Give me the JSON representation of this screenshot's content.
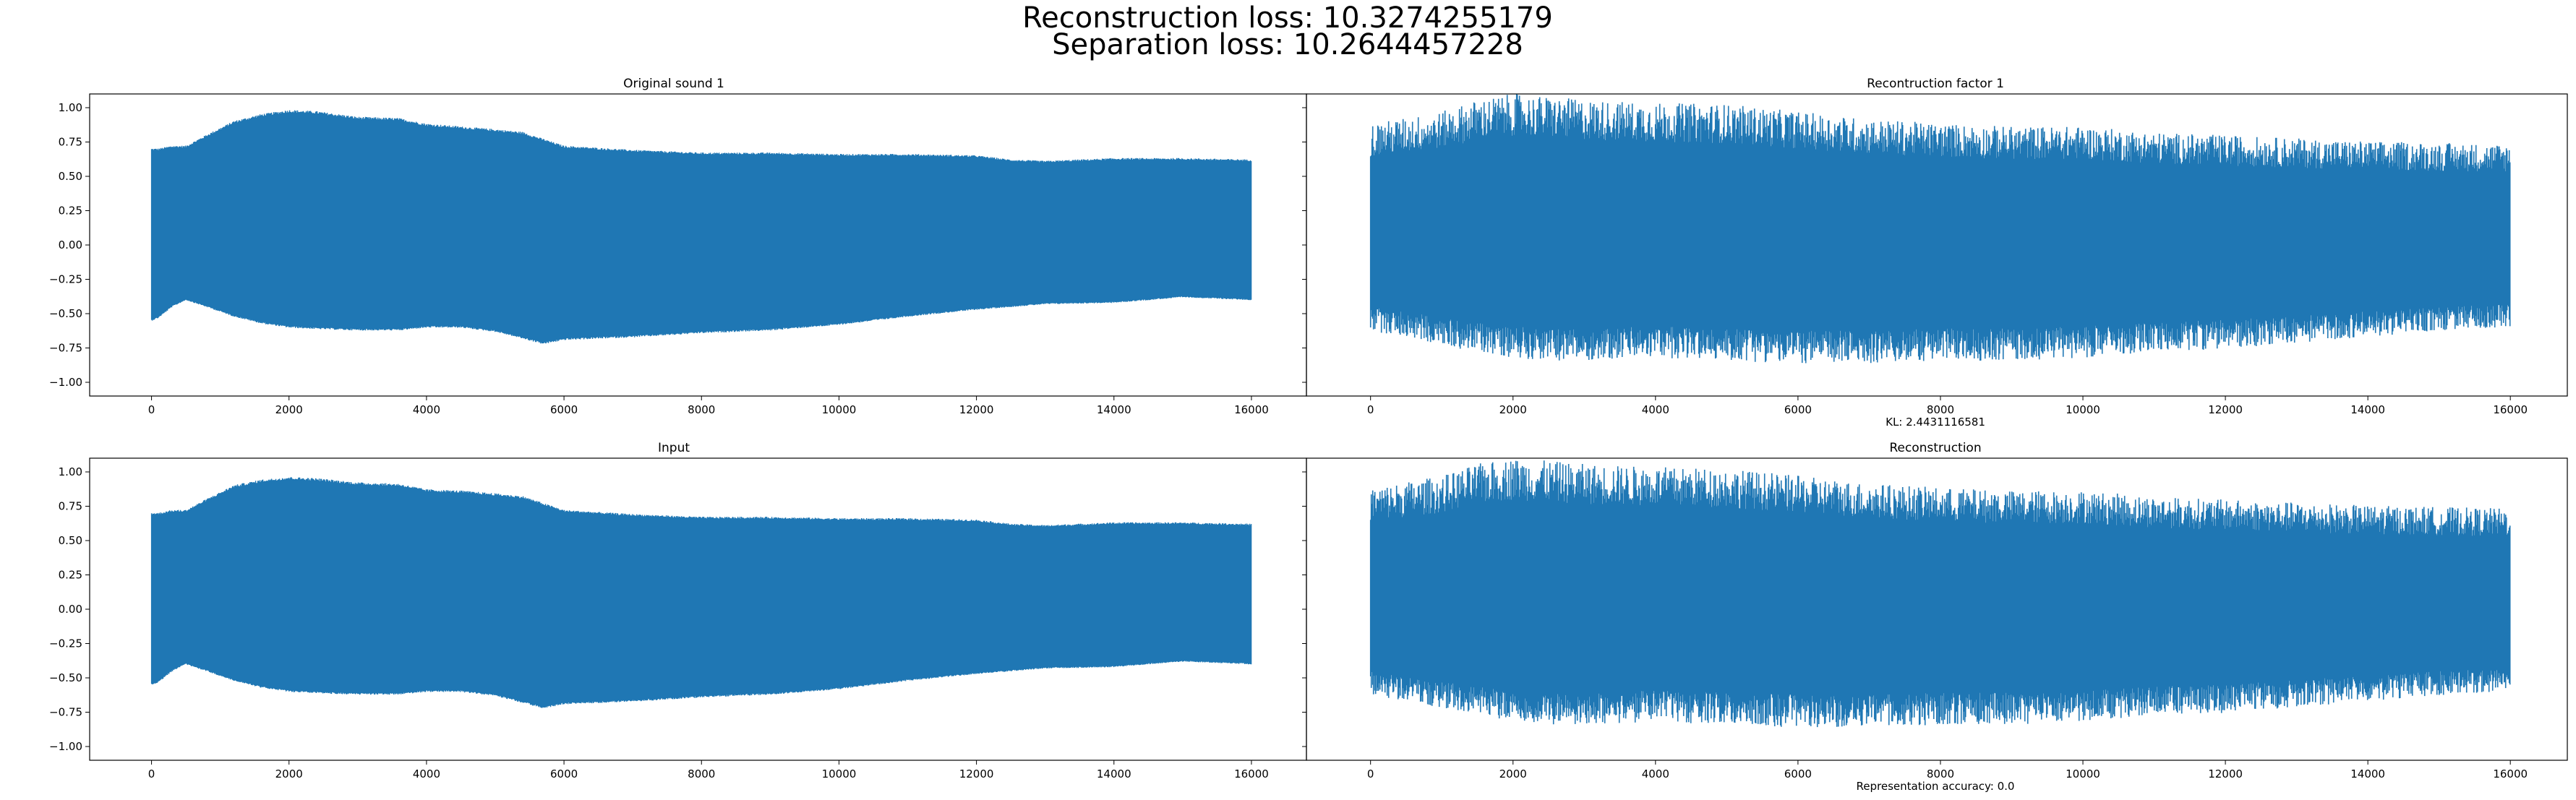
{
  "figure": {
    "suptitle_line1": "Reconstruction loss: 10.3274255179",
    "suptitle_line2": "Separation loss: 10.2644457228"
  },
  "chart_data": [
    {
      "type": "line",
      "title": "Original sound 1",
      "xlabel": "",
      "ylabel": "",
      "xlim": [
        -900,
        16800
      ],
      "ylim": [
        -1.1,
        1.1
      ],
      "xticks": [
        0,
        2000,
        4000,
        6000,
        8000,
        10000,
        12000,
        14000,
        16000
      ],
      "yticks": [
        -1.0,
        -0.75,
        -0.5,
        -0.25,
        0.0,
        0.25,
        0.5,
        0.75,
        1.0
      ],
      "ytick_labels": [
        "−1.00",
        "−0.75",
        "−0.50",
        "−0.25",
        "0.00",
        "0.25",
        "0.50",
        "0.75",
        "1.00"
      ],
      "grid": false,
      "color": "#1f77b4",
      "envelope_upper": {
        "x": [
          0,
          100,
          300,
          500,
          800,
          1200,
          1600,
          2000,
          2400,
          3000,
          3600,
          4000,
          4500,
          5000,
          5400,
          5700,
          6000,
          7000,
          8000,
          9000,
          10000,
          11000,
          12000,
          12500,
          13000,
          14000,
          15000,
          16000
        ],
        "y": [
          0.7,
          0.7,
          0.72,
          0.72,
          0.8,
          0.9,
          0.95,
          0.98,
          0.97,
          0.93,
          0.92,
          0.88,
          0.86,
          0.84,
          0.82,
          0.77,
          0.72,
          0.69,
          0.67,
          0.67,
          0.66,
          0.66,
          0.65,
          0.62,
          0.61,
          0.63,
          0.63,
          0.62
        ]
      },
      "envelope_lower": {
        "x": [
          0,
          100,
          300,
          500,
          800,
          1200,
          1600,
          2000,
          2400,
          3000,
          3600,
          4000,
          4500,
          5000,
          5400,
          5700,
          6000,
          7000,
          8000,
          9000,
          10000,
          11000,
          12000,
          13000,
          14000,
          15000,
          16000
        ],
        "y": [
          -0.55,
          -0.53,
          -0.45,
          -0.4,
          -0.45,
          -0.52,
          -0.57,
          -0.6,
          -0.61,
          -0.62,
          -0.62,
          -0.6,
          -0.6,
          -0.63,
          -0.68,
          -0.72,
          -0.69,
          -0.67,
          -0.64,
          -0.62,
          -0.58,
          -0.52,
          -0.47,
          -0.43,
          -0.42,
          -0.38,
          -0.4
        ]
      }
    },
    {
      "type": "line",
      "title": "Recontruction factor 1",
      "xlabel": "KL: 2.4431116581",
      "ylabel": "",
      "xlim": [
        -900,
        16800
      ],
      "ylim": [
        -1.1,
        1.1
      ],
      "xticks": [
        0,
        2000,
        4000,
        6000,
        8000,
        10000,
        12000,
        14000,
        16000
      ],
      "grid": false,
      "color": "#1f77b4",
      "envelope_upper": {
        "x": [
          0,
          500,
          1000,
          1500,
          2000,
          2500,
          3000,
          4000,
          5000,
          6000,
          7000,
          8000,
          9000,
          10000,
          11000,
          12000,
          13000,
          14000,
          15000,
          16000
        ],
        "y": [
          0.82,
          0.86,
          0.9,
          0.98,
          1.02,
          1.0,
          0.98,
          0.96,
          0.95,
          0.9,
          0.85,
          0.82,
          0.8,
          0.8,
          0.76,
          0.74,
          0.72,
          0.7,
          0.69,
          0.68
        ]
      },
      "envelope_lower": {
        "x": [
          0,
          500,
          1000,
          1500,
          2000,
          2500,
          3000,
          4000,
          5000,
          6000,
          7000,
          8000,
          9000,
          10000,
          11000,
          12000,
          13000,
          14000,
          15000,
          16000
        ],
        "y": [
          -0.58,
          -0.62,
          -0.68,
          -0.72,
          -0.76,
          -0.78,
          -0.78,
          -0.76,
          -0.78,
          -0.8,
          -0.8,
          -0.78,
          -0.78,
          -0.76,
          -0.72,
          -0.7,
          -0.66,
          -0.62,
          -0.58,
          -0.55
        ]
      }
    },
    {
      "type": "line",
      "title": "Input",
      "xlabel": "",
      "ylabel": "",
      "xlim": [
        -900,
        16800
      ],
      "ylim": [
        -1.1,
        1.1
      ],
      "xticks": [
        0,
        2000,
        4000,
        6000,
        8000,
        10000,
        12000,
        14000,
        16000
      ],
      "yticks": [
        -1.0,
        -0.75,
        -0.5,
        -0.25,
        0.0,
        0.25,
        0.5,
        0.75,
        1.0
      ],
      "ytick_labels": [
        "−1.00",
        "−0.75",
        "−0.50",
        "−0.25",
        "0.00",
        "0.25",
        "0.50",
        "0.75",
        "1.00"
      ],
      "grid": false,
      "color": "#1f77b4",
      "envelope_upper": {
        "x": [
          0,
          100,
          300,
          500,
          800,
          1200,
          1600,
          2000,
          2400,
          3000,
          3600,
          4000,
          4500,
          5000,
          5400,
          5700,
          6000,
          7000,
          8000,
          9000,
          10000,
          11000,
          12000,
          12500,
          13000,
          14000,
          15000,
          16000
        ],
        "y": [
          0.7,
          0.7,
          0.72,
          0.72,
          0.8,
          0.9,
          0.94,
          0.96,
          0.95,
          0.92,
          0.91,
          0.87,
          0.86,
          0.84,
          0.82,
          0.77,
          0.72,
          0.69,
          0.67,
          0.67,
          0.66,
          0.66,
          0.65,
          0.62,
          0.61,
          0.63,
          0.63,
          0.62
        ]
      },
      "envelope_lower": {
        "x": [
          0,
          100,
          300,
          500,
          800,
          1200,
          1600,
          2000,
          2400,
          3000,
          3600,
          4000,
          4500,
          5000,
          5400,
          5700,
          6000,
          7000,
          8000,
          9000,
          10000,
          11000,
          12000,
          13000,
          14000,
          15000,
          16000
        ],
        "y": [
          -0.55,
          -0.53,
          -0.45,
          -0.4,
          -0.45,
          -0.52,
          -0.57,
          -0.6,
          -0.61,
          -0.62,
          -0.62,
          -0.6,
          -0.6,
          -0.63,
          -0.68,
          -0.72,
          -0.69,
          -0.67,
          -0.64,
          -0.62,
          -0.58,
          -0.52,
          -0.47,
          -0.43,
          -0.42,
          -0.38,
          -0.4
        ]
      }
    },
    {
      "type": "line",
      "title": "Reconstruction",
      "xlabel": "Representation accuracy: 0.0",
      "ylabel": "",
      "xlim": [
        -900,
        16800
      ],
      "ylim": [
        -1.1,
        1.1
      ],
      "xticks": [
        0,
        2000,
        4000,
        6000,
        8000,
        10000,
        12000,
        14000,
        16000
      ],
      "grid": false,
      "color": "#1f77b4",
      "envelope_upper": {
        "x": [
          0,
          500,
          1000,
          1500,
          2000,
          2500,
          3000,
          4000,
          5000,
          6000,
          7000,
          8000,
          9000,
          10000,
          11000,
          12000,
          13000,
          14000,
          15000,
          16000
        ],
        "y": [
          0.82,
          0.86,
          0.9,
          0.98,
          1.02,
          1.0,
          0.98,
          0.96,
          0.95,
          0.9,
          0.85,
          0.82,
          0.8,
          0.8,
          0.76,
          0.74,
          0.72,
          0.7,
          0.69,
          0.68
        ]
      },
      "envelope_lower": {
        "x": [
          0,
          500,
          1000,
          1500,
          2000,
          2500,
          3000,
          4000,
          5000,
          6000,
          7000,
          8000,
          9000,
          10000,
          11000,
          12000,
          13000,
          14000,
          15000,
          16000
        ],
        "y": [
          -0.58,
          -0.62,
          -0.68,
          -0.72,
          -0.76,
          -0.78,
          -0.78,
          -0.76,
          -0.78,
          -0.8,
          -0.8,
          -0.78,
          -0.78,
          -0.76,
          -0.72,
          -0.7,
          -0.66,
          -0.62,
          -0.58,
          -0.55
        ]
      }
    }
  ]
}
